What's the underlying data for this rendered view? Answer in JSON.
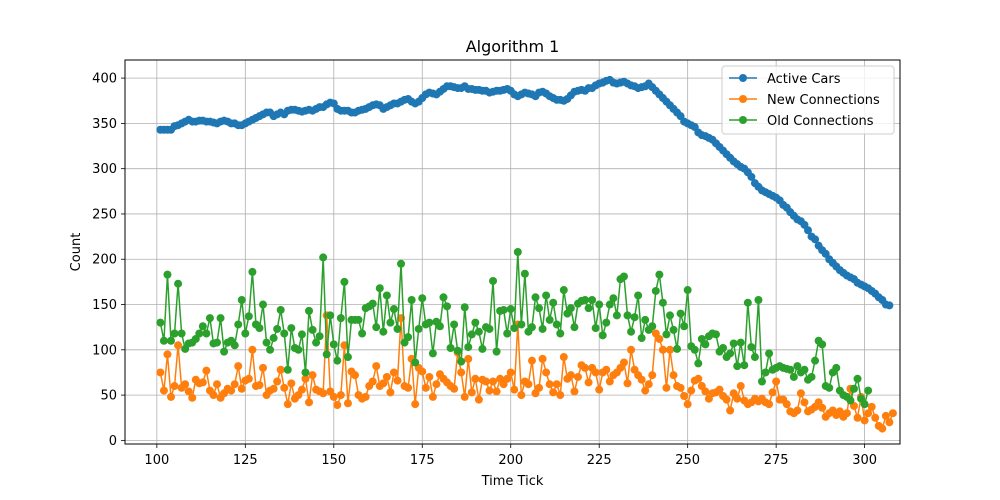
{
  "chart_data": {
    "type": "line",
    "title": "Algorithm 1",
    "xlabel": "Time Tick",
    "ylabel": "Count",
    "xlim": [
      91,
      310
    ],
    "ylim": [
      -4,
      420
    ],
    "xticks": [
      100,
      125,
      150,
      175,
      200,
      225,
      250,
      275,
      300
    ],
    "yticks": [
      0,
      50,
      100,
      150,
      200,
      250,
      300,
      350,
      400
    ],
    "grid": true,
    "legend_position": "upper right",
    "x_start": 101,
    "series": [
      {
        "name": "Active Cars",
        "color": "#1f77b4",
        "values": [
          343,
          343,
          343,
          343,
          347,
          348,
          350,
          352,
          354,
          352,
          352,
          353,
          353,
          352,
          352,
          351,
          350,
          352,
          353,
          352,
          350,
          350,
          348,
          348,
          350,
          352,
          354,
          356,
          358,
          360,
          362,
          362,
          358,
          360,
          362,
          360,
          364,
          365,
          365,
          364,
          363,
          364,
          365,
          364,
          366,
          368,
          368,
          371,
          373,
          372,
          366,
          364,
          364,
          364,
          362,
          362,
          364,
          365,
          366,
          368,
          370,
          371,
          370,
          366,
          368,
          370,
          372,
          372,
          374,
          376,
          377,
          374,
          372,
          374,
          378,
          382,
          384,
          383,
          382,
          385,
          388,
          391,
          391,
          390,
          389,
          389,
          391,
          388,
          388,
          387,
          387,
          386,
          386,
          384,
          385,
          386,
          386,
          387,
          388,
          386,
          382,
          380,
          382,
          384,
          383,
          382,
          380,
          384,
          385,
          383,
          380,
          378,
          376,
          376,
          375,
          377,
          381,
          385,
          386,
          387,
          386,
          389,
          389,
          392,
          394,
          395,
          397,
          398,
          395,
          394,
          395,
          396,
          394,
          392,
          391,
          389,
          390,
          391,
          394,
          390,
          386,
          382,
          378,
          374,
          370,
          366,
          362,
          358,
          352,
          350,
          348,
          346,
          340,
          337,
          336,
          334,
          332,
          328,
          324,
          320,
          316,
          312,
          308,
          305,
          302,
          300,
          296,
          291,
          284,
          280,
          276,
          274,
          272,
          270,
          268,
          265,
          260,
          257,
          252,
          248,
          244,
          242,
          238,
          232,
          225,
          222,
          215,
          210,
          206,
          200,
          196,
          192,
          188,
          185,
          182,
          180,
          178,
          174,
          172,
          170,
          168,
          165,
          162,
          158,
          155,
          150,
          149
        ]
      },
      {
        "name": "New Connections",
        "color": "#ff7f0e",
        "values": [
          75,
          55,
          95,
          48,
          60,
          105,
          58,
          62,
          54,
          47,
          67,
          63,
          64,
          77,
          55,
          50,
          62,
          47,
          52,
          57,
          55,
          62,
          82,
          57,
          66,
          68,
          100,
          60,
          61,
          80,
          50,
          55,
          57,
          65,
          78,
          58,
          40,
          63,
          46,
          50,
          56,
          68,
          42,
          72,
          56,
          54,
          52,
          138,
          54,
          48,
          39,
          50,
          105,
          41,
          76,
          72,
          50,
          46,
          48,
          60,
          65,
          82,
          60,
          63,
          70,
          53,
          75,
          66,
          135,
          60,
          58,
          90,
          40,
          80,
          76,
          58,
          70,
          48,
          62,
          73,
          68,
          64,
          60,
          57,
          97,
          75,
          48,
          90,
          53,
          68,
          45,
          67,
          65,
          55,
          65,
          54,
          68,
          62,
          68,
          75,
          56,
          128,
          50,
          65,
          62,
          88,
          52,
          58,
          90,
          75,
          62,
          53,
          62,
          50,
          92,
          68,
          72,
          54,
          70,
          83,
          80,
          64,
          80,
          75,
          56,
          75,
          78,
          65,
          72,
          75,
          80,
          86,
          63,
          100,
          78,
          72,
          67,
          55,
          62,
          72,
          118,
          112,
          100,
          58,
          100,
          72,
          60,
          58,
          49,
          40,
          55,
          66,
          68,
          60,
          54,
          46,
          52,
          53,
          56,
          49,
          45,
          33,
          52,
          46,
          60,
          44,
          40,
          42,
          46,
          43,
          46,
          42,
          40,
          53,
          65,
          45,
          45,
          40,
          32,
          30,
          33,
          52,
          42,
          32,
          34,
          37,
          42,
          36,
          26,
          30,
          33,
          28,
          32,
          26,
          30,
          57,
          38,
          25,
          48,
          22,
          30,
          37,
          25,
          16,
          13,
          27,
          20,
          30
        ]
      },
      {
        "name": "Old Connections",
        "color": "#2ca02c",
        "values": [
          130,
          110,
          183,
          110,
          118,
          173,
          118,
          101,
          107,
          108,
          112,
          118,
          126,
          118,
          135,
          107,
          108,
          135,
          98,
          108,
          110,
          105,
          128,
          155,
          118,
          137,
          186,
          128,
          124,
          150,
          108,
          100,
          113,
          123,
          144,
          118,
          78,
          124,
          102,
          100,
          117,
          75,
          143,
          122,
          108,
          115,
          202,
          95,
          138,
          106,
          88,
          135,
          175,
          92,
          133,
          133,
          133,
          118,
          146,
          148,
          151,
          125,
          168,
          120,
          160,
          130,
          145,
          123,
          195,
          108,
          114,
          155,
          86,
          123,
          157,
          128,
          130,
          96,
          131,
          126,
          158,
          148,
          102,
          128,
          99,
          87,
          147,
          103,
          117,
          130,
          120,
          101,
          125,
          123,
          176,
          98,
          143,
          144,
          118,
          145,
          124,
          208,
          128,
          184,
          120,
          125,
          158,
          146,
          123,
          160,
          133,
          152,
          128,
          118,
          166,
          140,
          146,
          125,
          151,
          154,
          155,
          146,
          155,
          124,
          150,
          116,
          130,
          150,
          157,
          138,
          178,
          181,
          138,
          120,
          136,
          160,
          113,
          133,
          122,
          126,
          165,
          183,
          152,
          117,
          138,
          122,
          101,
          140,
          126,
          166,
          104,
          100,
          85,
          112,
          106,
          115,
          118,
          117,
          98,
          102,
          92,
          96,
          107,
          82,
          108,
          83,
          152,
          103,
          92,
          155,
          65,
          75,
          96,
          78,
          80,
          82,
          80,
          79,
          78,
          70,
          82,
          75,
          78,
          67,
          70,
          88,
          110,
          106,
          60,
          58,
          75,
          80,
          55,
          50,
          48,
          44,
          57,
          68,
          46,
          40,
          55
        ]
      }
    ]
  }
}
